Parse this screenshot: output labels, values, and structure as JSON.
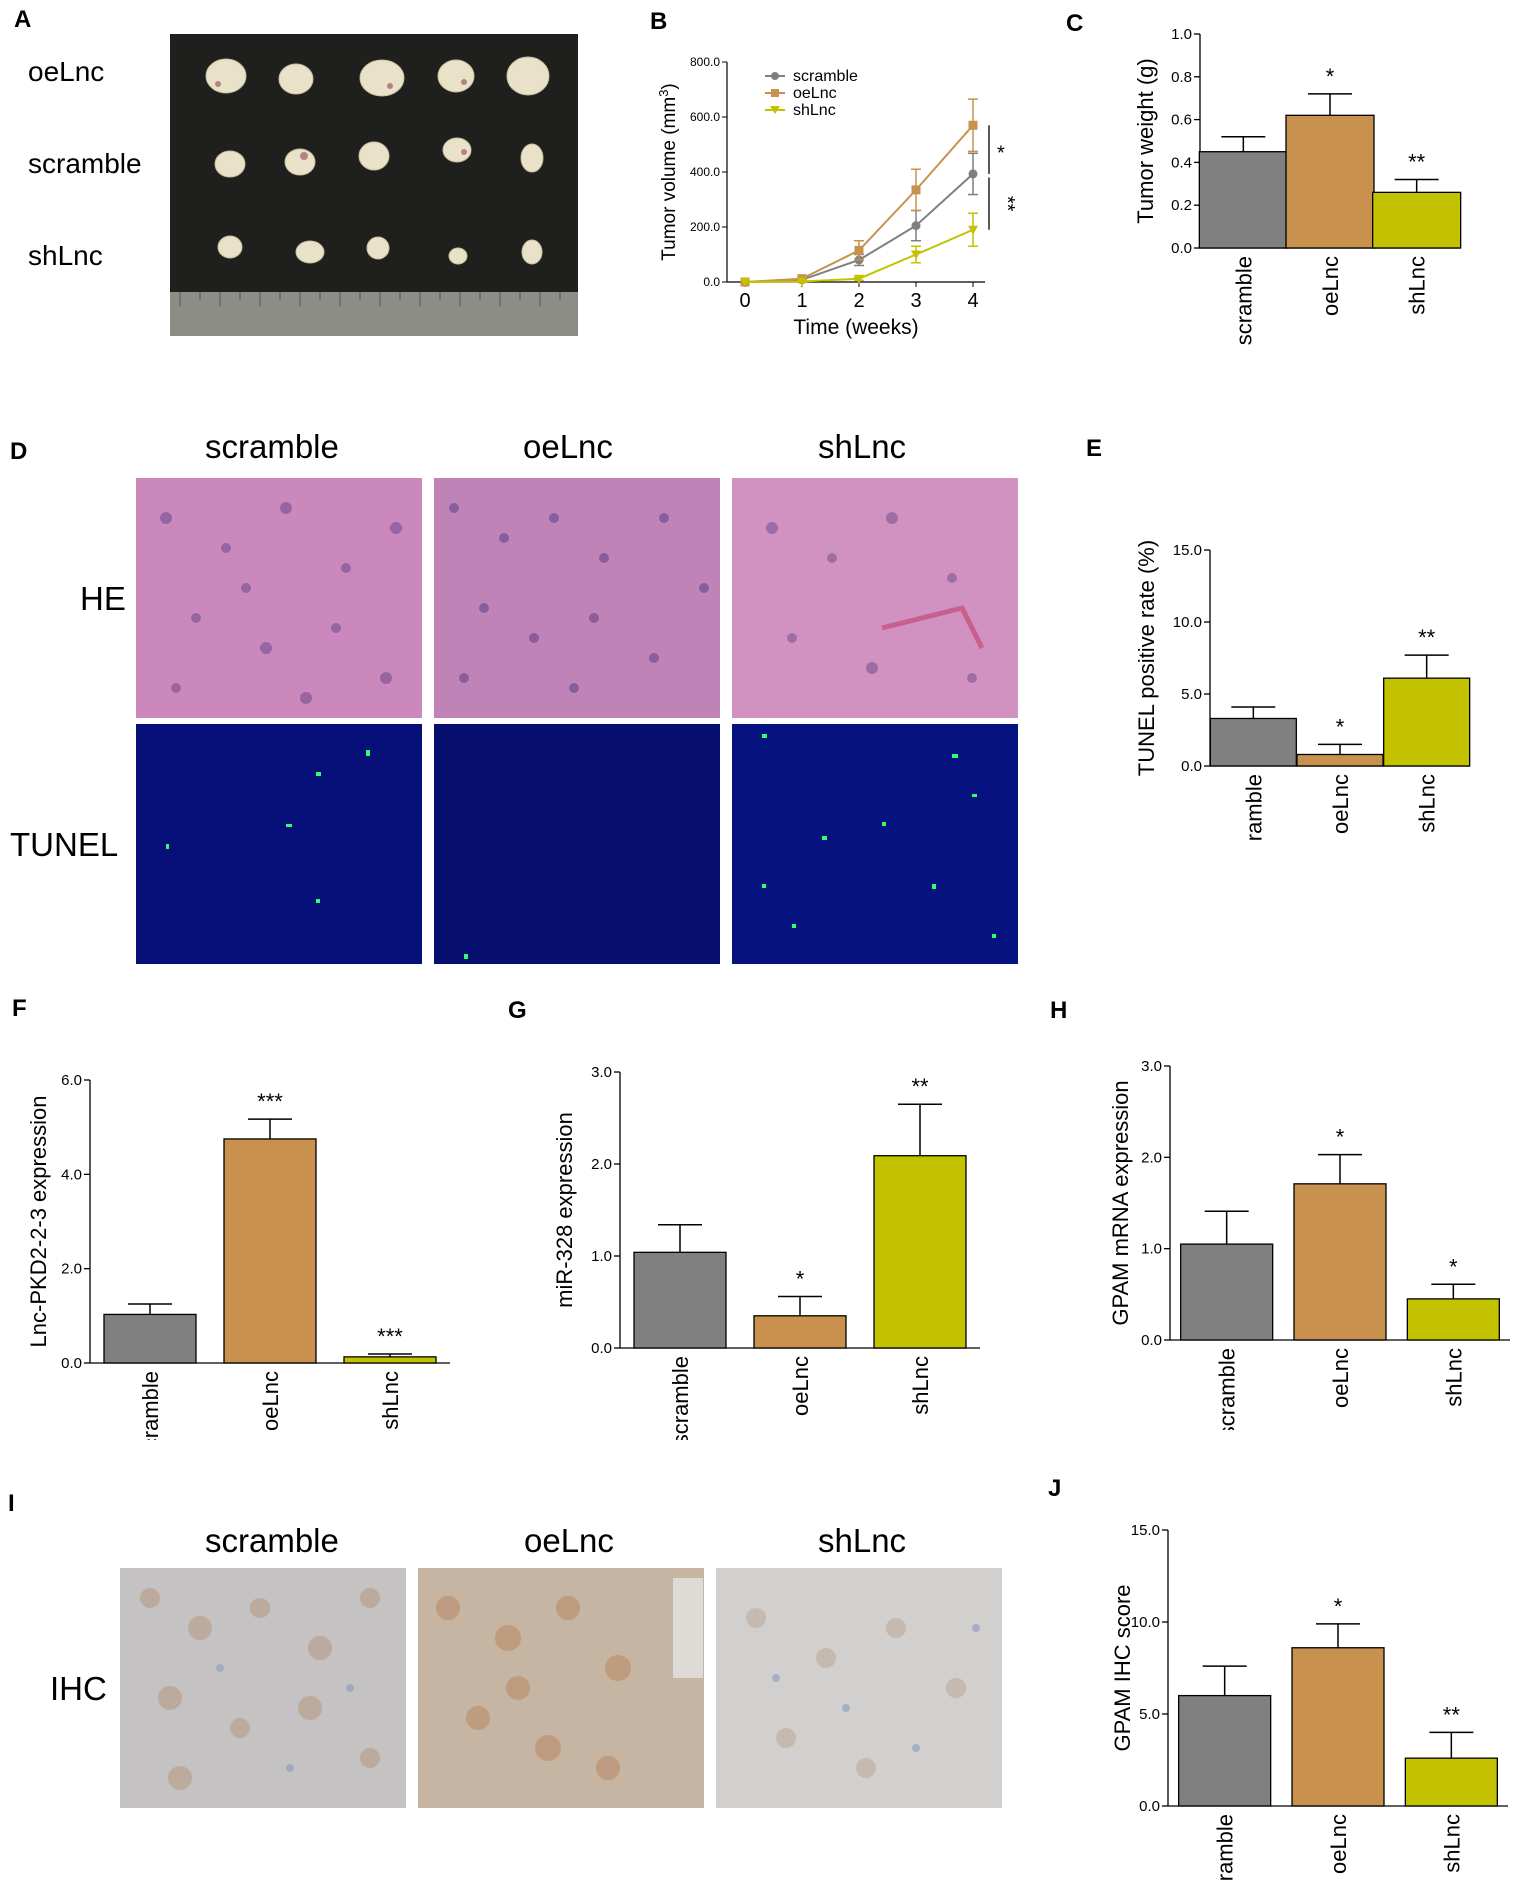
{
  "panels": {
    "a": {
      "letter": "A",
      "row_labels": [
        "oeLnc",
        "scramble",
        "shLnc"
      ]
    },
    "b": {
      "letter": "B"
    },
    "c": {
      "letter": "C"
    },
    "d": {
      "letter": "D",
      "col_labels": [
        "scramble",
        "oeLnc",
        "shLnc"
      ],
      "row_labels": [
        "HE",
        "TUNEL"
      ]
    },
    "e": {
      "letter": "E"
    },
    "f": {
      "letter": "F"
    },
    "g": {
      "letter": "G"
    },
    "h": {
      "letter": "H"
    },
    "i": {
      "letter": "I",
      "col_labels": [
        "scramble",
        "oeLnc",
        "shLnc"
      ],
      "row_labels": [
        "IHC"
      ]
    },
    "j": {
      "letter": "J"
    }
  },
  "colors": {
    "scramble": "#808080",
    "oeLnc": "#c8914e",
    "shLnc": "#c2c200"
  },
  "chart_data": [
    {
      "id": "B",
      "type": "line",
      "x": [
        0,
        1,
        2,
        3,
        4
      ],
      "xticks": [
        "0",
        "1",
        "2",
        "3",
        "4"
      ],
      "yticks": [
        "0.0",
        "200.0",
        "400.0",
        "600.0",
        "800.0"
      ],
      "xlabel": "Time (weeks)",
      "ylabel": "Tumor volume (mm",
      "ylabel_sup": "3",
      "ylabel_end": ")",
      "ylim": [
        0,
        800
      ],
      "legend": "top-left",
      "series": [
        {
          "name": "scramble",
          "values": [
            0,
            8,
            80,
            205,
            393
          ],
          "err": [
            0,
            4,
            20,
            55,
            75
          ]
        },
        {
          "name": "oeLnc",
          "values": [
            0,
            12,
            115,
            335,
            570
          ],
          "err": [
            0,
            5,
            35,
            75,
            95
          ]
        },
        {
          "name": "shLnc",
          "values": [
            0,
            2,
            12,
            100,
            190
          ],
          "err": [
            0,
            2,
            6,
            30,
            60
          ]
        }
      ],
      "annotations": [
        "*",
        "**"
      ]
    },
    {
      "id": "C",
      "type": "bar",
      "categories": [
        "scramble",
        "oeLnc",
        "shLnc"
      ],
      "values": [
        0.45,
        0.62,
        0.26
      ],
      "err": [
        0.07,
        0.1,
        0.06
      ],
      "labels": [
        "",
        "*",
        "**"
      ],
      "ylabel": "Tumor weight (g)",
      "ylim": [
        0,
        1.0
      ],
      "yticks": [
        "0.0",
        "0.2",
        "0.4",
        "0.6",
        "0.8",
        "1.0"
      ]
    },
    {
      "id": "E",
      "type": "bar",
      "categories": [
        "scramble",
        "oeLnc",
        "shLnc"
      ],
      "values": [
        3.3,
        0.8,
        6.1
      ],
      "err": [
        0.8,
        0.7,
        1.6
      ],
      "labels": [
        "",
        "*",
        "**"
      ],
      "ylabel": "TUNEL positive rate (%)",
      "ylim": [
        0,
        15
      ],
      "yticks": [
        "0.0",
        "5.0",
        "10.0",
        "15.0"
      ]
    },
    {
      "id": "F",
      "type": "bar",
      "categories": [
        "scramble",
        "oeLnc",
        "shLnc"
      ],
      "values": [
        1.03,
        4.75,
        0.13
      ],
      "err": [
        0.22,
        0.42,
        0.06
      ],
      "labels": [
        "",
        "***",
        "***"
      ],
      "ylabel": "Lnc-PKD2-2-3  expression",
      "ylim": [
        0,
        6
      ],
      "yticks": [
        "0.0",
        "2.0",
        "4.0",
        "6.0"
      ]
    },
    {
      "id": "G",
      "type": "bar",
      "categories": [
        "scramble",
        "oeLnc",
        "shLnc"
      ],
      "values": [
        1.04,
        0.35,
        2.09
      ],
      "err": [
        0.3,
        0.21,
        0.56
      ],
      "labels": [
        "",
        "*",
        "**"
      ],
      "ylabel": "miR-328 expression",
      "ylim": [
        0,
        3
      ],
      "yticks": [
        "0.0",
        "1.0",
        "2.0",
        "3.0"
      ]
    },
    {
      "id": "H",
      "type": "bar",
      "categories": [
        "scramble",
        "oeLnc",
        "shLnc"
      ],
      "values": [
        1.05,
        1.71,
        0.45
      ],
      "err": [
        0.36,
        0.32,
        0.16
      ],
      "labels": [
        "",
        "*",
        "*"
      ],
      "ylabel": "GPAM mRNA expression",
      "ylim": [
        0,
        3
      ],
      "yticks": [
        "0.0",
        "1.0",
        "2.0",
        "3.0"
      ]
    },
    {
      "id": "J",
      "type": "bar",
      "categories": [
        "scramble",
        "oeLnc",
        "shLnc"
      ],
      "values": [
        6.0,
        8.6,
        2.6
      ],
      "err": [
        1.6,
        1.3,
        1.4
      ],
      "labels": [
        "",
        "*",
        "**"
      ],
      "ylabel": "GPAM IHC score",
      "ylim": [
        0,
        15
      ],
      "yticks": [
        "0.0",
        "5.0",
        "10.0",
        "15.0"
      ]
    }
  ]
}
